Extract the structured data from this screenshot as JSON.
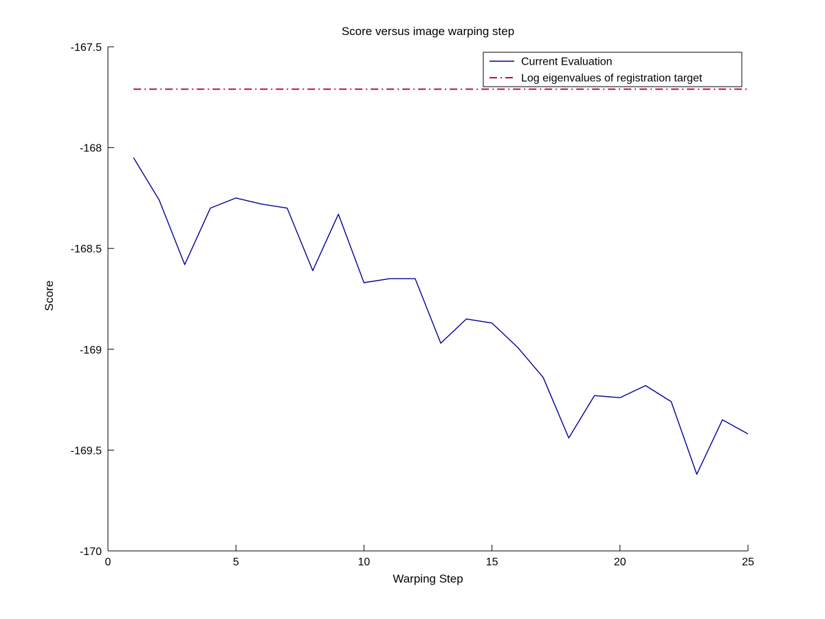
{
  "chart_data": {
    "type": "line",
    "title": "Score versus image warping step",
    "xlabel": "Warping Step",
    "ylabel": "Score",
    "xlim": [
      0,
      25
    ],
    "ylim": [
      -170,
      -167.5
    ],
    "x_ticks": [
      0,
      5,
      10,
      15,
      20,
      25
    ],
    "y_ticks": [
      -170,
      -169.5,
      -169,
      -168.5,
      -168,
      -167.5
    ],
    "grid": false,
    "axis_color": "#000000",
    "background": "#ffffff",
    "legend": {
      "position": "upper-right",
      "border_color": "#000000",
      "entries": [
        "Current Evaluation",
        "Log eigenvalues of registration target"
      ]
    },
    "series": [
      {
        "name": "Current Evaluation",
        "color": "#000096",
        "line_style": "solid",
        "line_width": 1.4,
        "x": [
          1,
          2,
          3,
          4,
          5,
          6,
          7,
          8,
          9,
          10,
          11,
          12,
          13,
          14,
          15,
          16,
          17,
          18,
          19,
          20,
          21,
          22,
          23,
          24,
          25
        ],
        "y": [
          -168.05,
          -168.26,
          -168.58,
          -168.3,
          -168.25,
          -168.28,
          -168.3,
          -168.61,
          -168.33,
          -168.67,
          -168.65,
          -168.65,
          -168.97,
          -168.85,
          -168.87,
          -168.99,
          -169.14,
          -169.44,
          -169.23,
          -169.24,
          -169.18,
          -169.26,
          -169.62,
          -169.35,
          -169.42
        ]
      },
      {
        "name": "Log eigenvalues of registration target",
        "color": "#bb1133",
        "line_style": "dash-dot",
        "line_width": 2,
        "x": [
          1,
          25
        ],
        "y": [
          -167.71,
          -167.71
        ]
      }
    ]
  }
}
